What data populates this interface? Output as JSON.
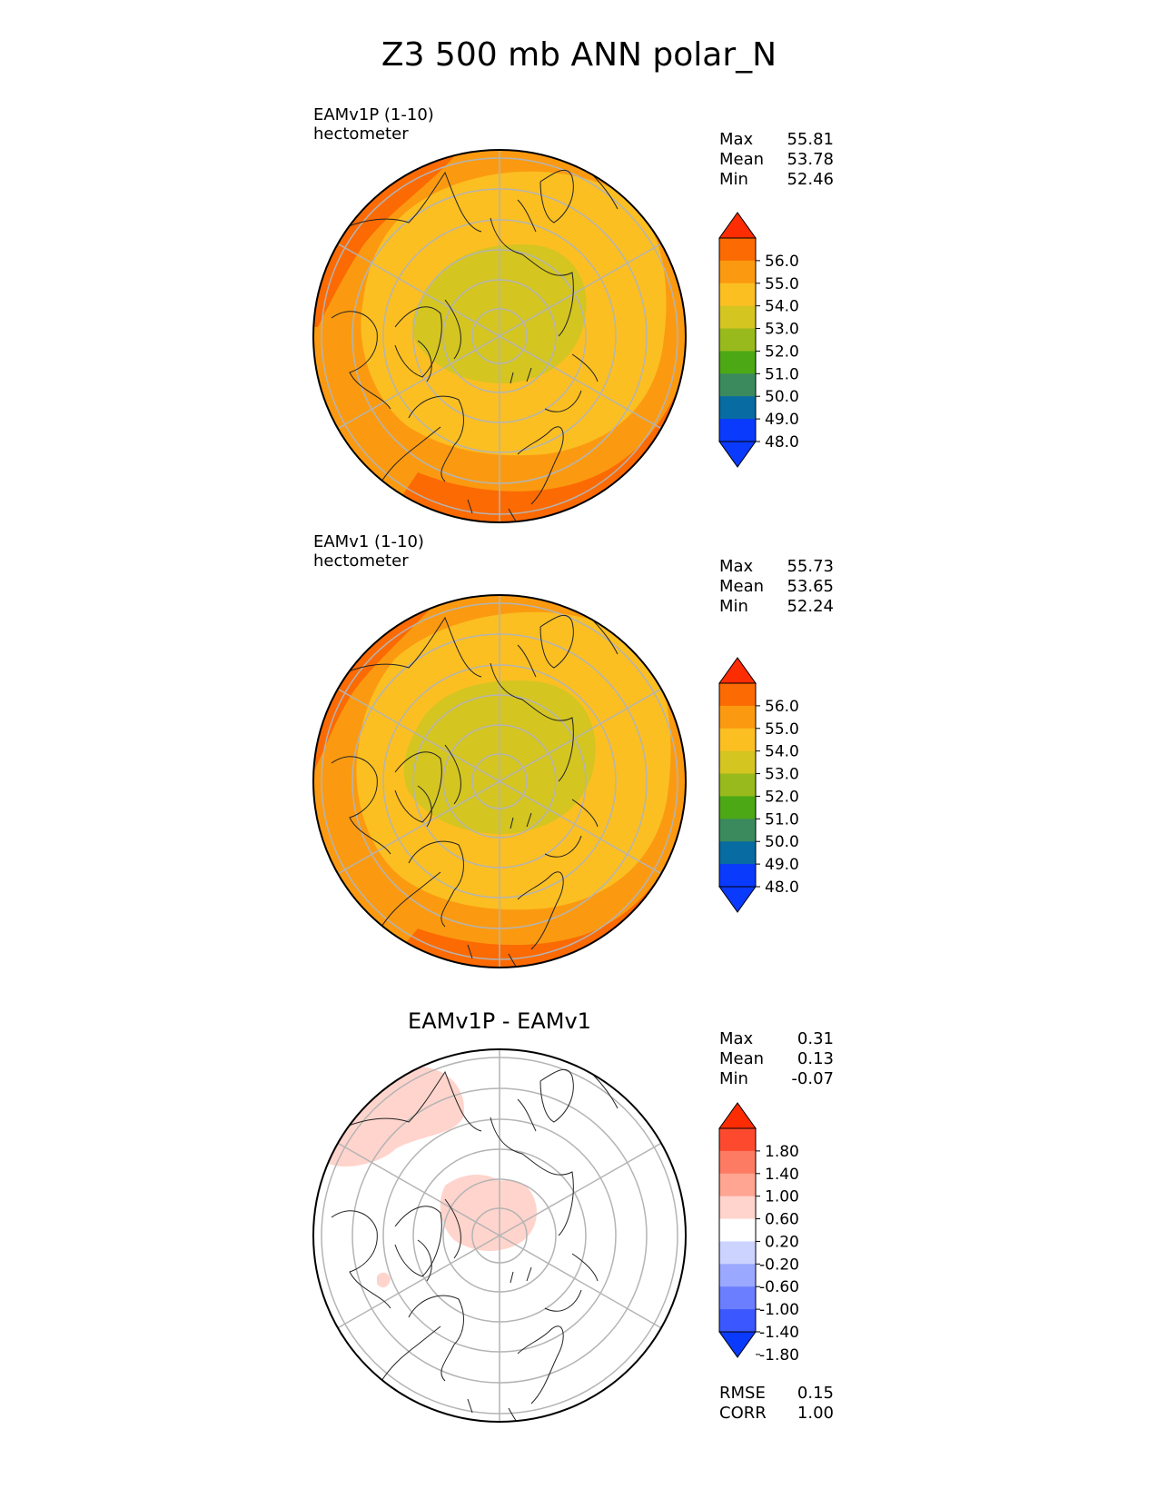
{
  "title": "Z3 500 mb ANN polar_N",
  "panels": [
    {
      "label_line1": "EAMv1P (1-10)",
      "label_line2": "hectometer",
      "stats": [
        {
          "label": "Max",
          "value": "55.81"
        },
        {
          "label": "Mean",
          "value": "53.78"
        },
        {
          "label": "Min",
          "value": "52.46"
        }
      ]
    },
    {
      "label_line1": "EAMv1 (1-10)",
      "label_line2": "hectometer",
      "stats": [
        {
          "label": "Max",
          "value": "55.73"
        },
        {
          "label": "Mean",
          "value": "53.65"
        },
        {
          "label": "Min",
          "value": "52.24"
        }
      ]
    },
    {
      "title": "EAMv1P - EAMv1",
      "stats": [
        {
          "label": "Max",
          "value": "0.31"
        },
        {
          "label": "Mean",
          "value": "0.13"
        },
        {
          "label": "Min",
          "value": "-0.07"
        }
      ],
      "metrics": [
        {
          "label": "RMSE",
          "value": "0.15"
        },
        {
          "label": "CORR",
          "value": "1.00"
        }
      ]
    }
  ],
  "colorbar_main": {
    "ticks": [
      "56.0",
      "55.0",
      "54.0",
      "53.0",
      "52.0",
      "51.0",
      "50.0",
      "49.0",
      "48.0"
    ],
    "colors": [
      "#fc2c03",
      "#fc6a03",
      "#fb9a10",
      "#fbbf22",
      "#d4c521",
      "#98ba1c",
      "#4ca815",
      "#3a8a5e",
      "#086ca2",
      "#0a3afc",
      "#0a3afc"
    ]
  },
  "colorbar_diff": {
    "ticks": [
      "1.80",
      "1.40",
      "1.00",
      "0.60",
      "0.20",
      "-0.20",
      "-0.60",
      "-1.00",
      "-1.40",
      "-1.80"
    ],
    "colors": [
      "#fc2c03",
      "#fd4a2e",
      "#fe7b63",
      "#ffa592",
      "#ffd4cc",
      "#ffffff",
      "#ccd3ff",
      "#9aa8ff",
      "#6a7eff",
      "#3b57ff",
      "#0a3afc"
    ]
  },
  "chart_data": [
    {
      "type": "heatmap",
      "title": "EAMv1P (1-10)",
      "units": "hectometer",
      "projection": "north polar stereographic",
      "levels": [
        48.0,
        49.0,
        50.0,
        51.0,
        52.0,
        53.0,
        54.0,
        55.0,
        56.0
      ],
      "max": 55.81,
      "mean": 53.78,
      "min": 52.46
    },
    {
      "type": "heatmap",
      "title": "EAMv1 (1-10)",
      "units": "hectometer",
      "projection": "north polar stereographic",
      "levels": [
        48.0,
        49.0,
        50.0,
        51.0,
        52.0,
        53.0,
        54.0,
        55.0,
        56.0
      ],
      "max": 55.73,
      "mean": 53.65,
      "min": 52.24
    },
    {
      "type": "heatmap",
      "title": "EAMv1P - EAMv1",
      "projection": "north polar stereographic",
      "levels": [
        -1.8,
        -1.4,
        -1.0,
        -0.6,
        -0.2,
        0.2,
        0.6,
        1.0,
        1.4,
        1.8
      ],
      "max": 0.31,
      "mean": 0.13,
      "min": -0.07,
      "rmse": 0.15,
      "corr": 1.0
    }
  ]
}
